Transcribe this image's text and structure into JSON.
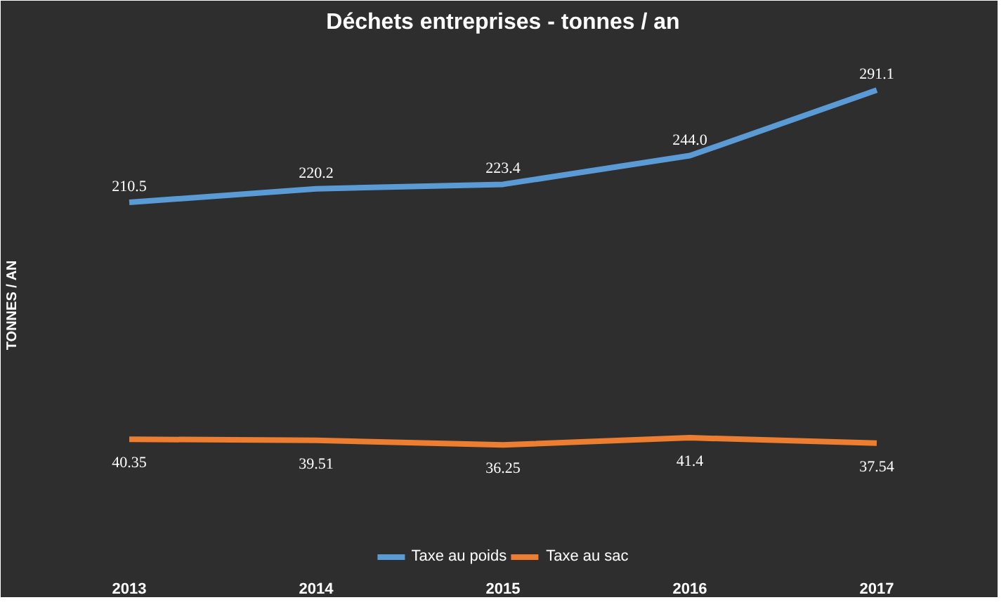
{
  "chart_data": {
    "type": "line",
    "title": "Déchets entreprises - tonnes / an",
    "ylabel": "TONNES / AN",
    "categories": [
      "2013",
      "2014",
      "2015",
      "2016",
      "2017"
    ],
    "series": [
      {
        "name": "Taxe au poids",
        "color": "#5b9bd5",
        "values": [
          210.5,
          220.2,
          223.4,
          244.0,
          291.1
        ],
        "value_labels": [
          "210.5",
          "220.2",
          "223.4",
          "244.0",
          "291.1"
        ]
      },
      {
        "name": "Taxe au sac",
        "color": "#ed7d31",
        "values": [
          40.35,
          39.51,
          36.25,
          41.4,
          37.54
        ],
        "value_labels": [
          "40.35",
          "39.51",
          "36.25",
          "41.4",
          "37.54"
        ]
      }
    ],
    "data_labels": true,
    "legend": "bottom",
    "grid": false,
    "tick_labels": "x",
    "marker": "none",
    "line_style": "solid"
  }
}
